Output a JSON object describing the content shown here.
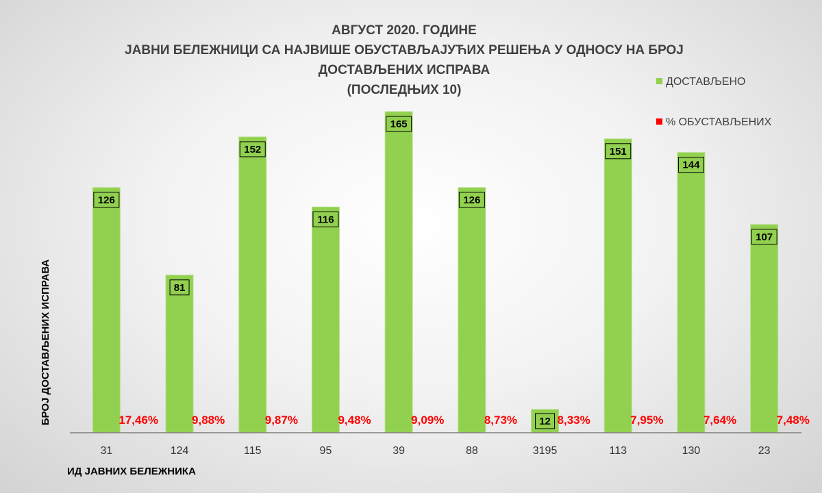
{
  "chart_data": {
    "type": "bar",
    "title_lines": [
      "АВГУСТ 2020. ГОДИНЕ",
      "ЈАВНИ БЕЛЕЖНИЦИ СА НАЈВИШЕ ОБУСТАВЉАЈУЋИХ РЕШЕЊА У ОДНОСУ НА БРОЈ",
      "ДОСТАВЉЕНИХ ИСПРАВА",
      "(ПОСЛЕДЊИХ 10)"
    ],
    "xlabel": "ИД ЈАВНИХ БЕЛЕЖНИКА",
    "ylabel": "БРОЈ ДОСТАВЉЕНИХ ИСПРАВА",
    "categories": [
      "31",
      "124",
      "115",
      "95",
      "39",
      "88",
      "3195",
      "113",
      "130",
      "23"
    ],
    "series": [
      {
        "name": "ДОСТАВЉЕНО",
        "color": "#92d050",
        "values": [
          126,
          81,
          152,
          116,
          165,
          126,
          12,
          151,
          144,
          107
        ]
      },
      {
        "name": "% ОБУСТАВЉЕНИХ",
        "color": "#ff0000",
        "values": [
          17.46,
          9.88,
          9.87,
          9.48,
          9.09,
          8.73,
          8.33,
          7.95,
          7.64,
          7.48
        ],
        "labels": [
          "17,46%",
          "9,88%",
          "9,87%",
          "9,48%",
          "9,09%",
          "8,73%",
          "8,33%",
          "7,95%",
          "7,64%",
          "7,48%"
        ]
      }
    ],
    "ylim": [
      0,
      165
    ],
    "grid": false,
    "legend": "top-right"
  }
}
